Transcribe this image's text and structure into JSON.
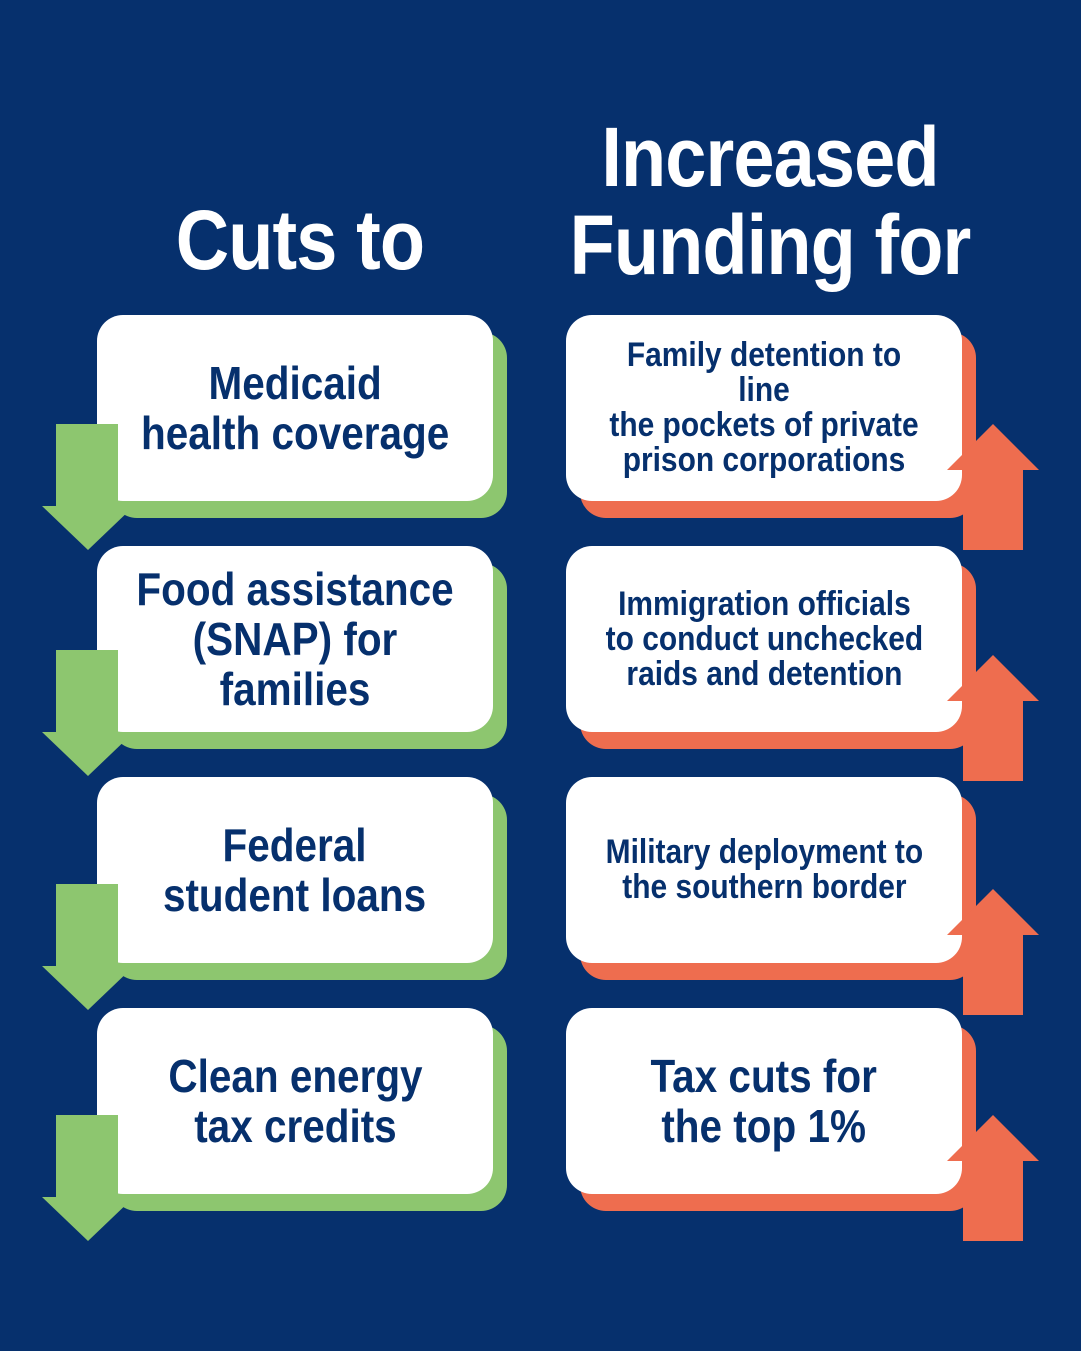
{
  "headings": {
    "left": "Cuts to",
    "right_line1": "Increased",
    "right_line2": "Funding for"
  },
  "cuts": [
    "Medicaid\nhealth coverage",
    "Food assistance\n(SNAP) for families",
    "Federal\nstudent loans",
    "Clean energy\ntax credits"
  ],
  "increases": [
    "Family detention to line\nthe pockets of private\nprison corporations",
    "Immigration officials\nto conduct unchecked\nraids and detention",
    "Military deployment to\nthe southern border",
    "Tax cuts for\nthe top 1%"
  ],
  "colors": {
    "background": "#06306d",
    "cut_accent": "#8dc66f",
    "increase_accent": "#ee6d4f",
    "card": "#ffffff",
    "text": "#06306d"
  },
  "icons": {
    "cut": "arrow-down-icon",
    "increase": "arrow-up-icon"
  }
}
